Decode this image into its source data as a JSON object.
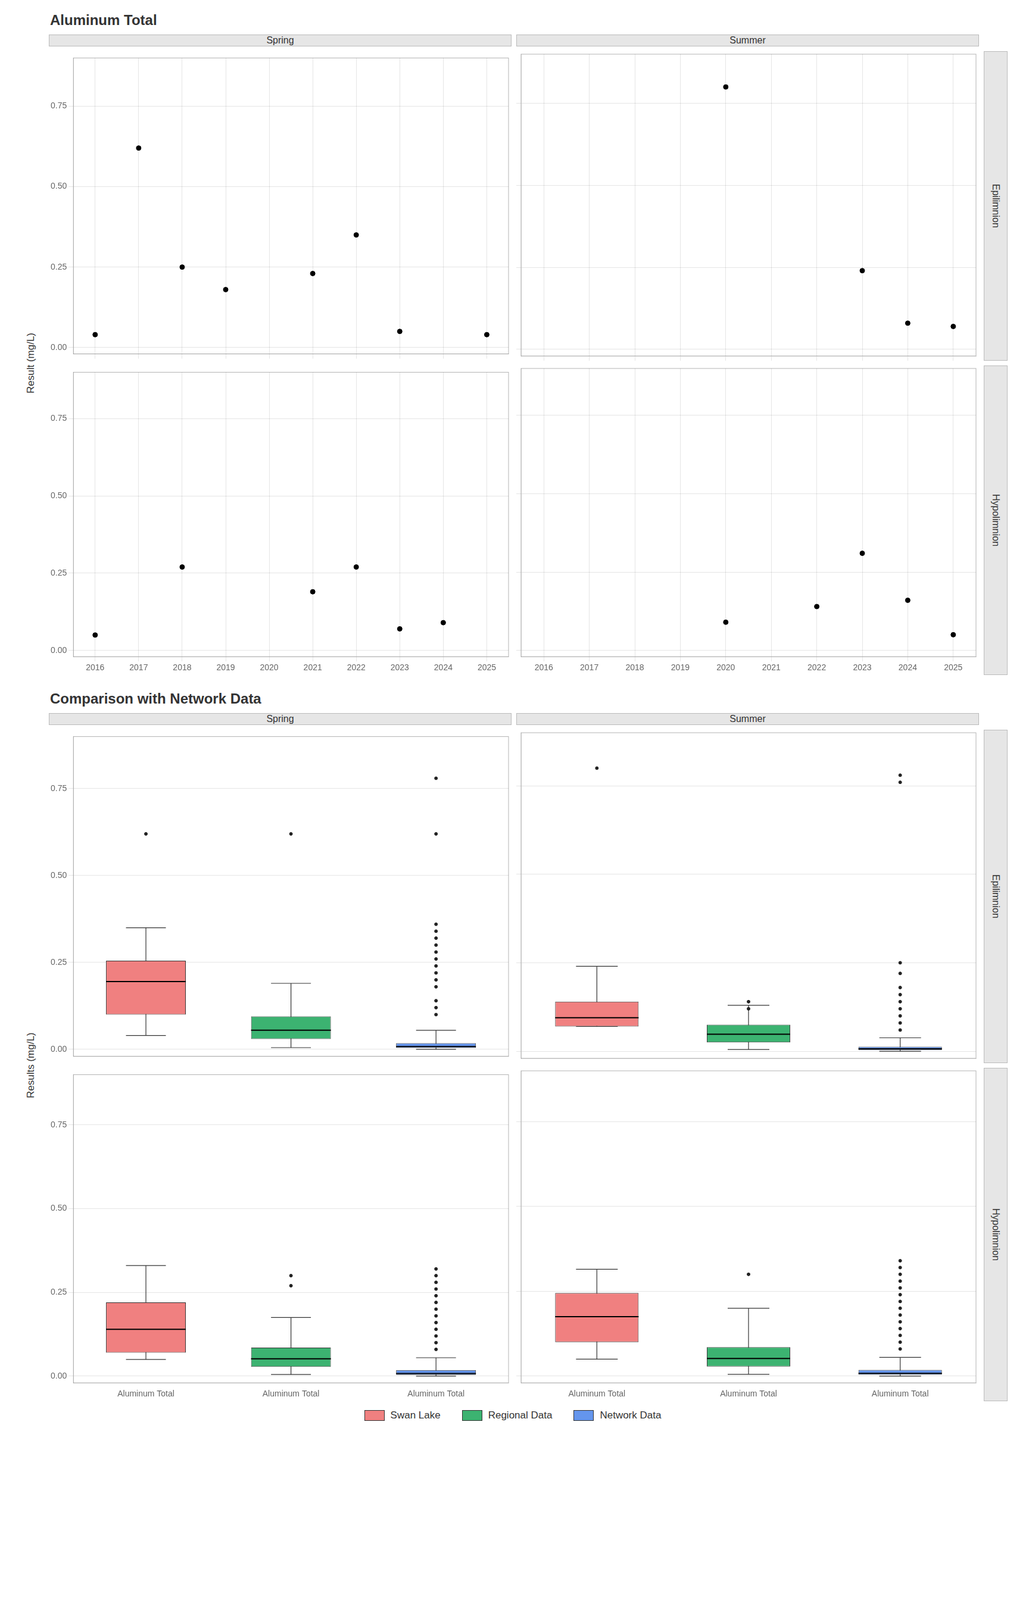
{
  "chart_data": [
    {
      "type": "scatter",
      "title": "Aluminum Total",
      "y_label": "Result (mg/L)",
      "color": "#000000",
      "xlim": [
        2015.5,
        2025.5
      ],
      "xticks": [
        2016,
        2017,
        2018,
        2019,
        2020,
        2021,
        2022,
        2023,
        2024,
        2025
      ],
      "ylim": [
        -0.02,
        0.9
      ],
      "yticks": [
        {
          "value": 0,
          "label": "0.00"
        },
        0.25,
        {
          "value": 0.5,
          "label": "0.50"
        },
        0.75
      ],
      "grid": true,
      "columns": [
        "Spring",
        "Summer"
      ],
      "rows": [
        "Epilimnion",
        "Hypolimnion"
      ],
      "panels": [
        [
          {
            "x": [
              2016,
              2017,
              2018,
              2019,
              2020,
              2021,
              2022,
              2023,
              2024,
              2025
            ],
            "values": [
              0.04,
              0.62,
              0.25,
              0.18,
              null,
              0.23,
              0.35,
              0.05,
              null,
              0.04
            ],
            "tick_labels": "y"
          },
          {
            "x": [
              2016,
              2017,
              2018,
              2019,
              2020,
              2021,
              2022,
              2023,
              2024,
              2025
            ],
            "values": [
              null,
              null,
              null,
              null,
              0.8,
              null,
              null,
              0.24,
              0.08,
              0.07
            ],
            "tick_labels": false
          }
        ],
        [
          {
            "x": [
              2016,
              2017,
              2018,
              2019,
              2020,
              2021,
              2022,
              2023,
              2024,
              2025
            ],
            "values": [
              0.05,
              null,
              0.27,
              null,
              null,
              0.19,
              0.27,
              0.07,
              0.09,
              null
            ]
          },
          {
            "x": [
              2016,
              2017,
              2018,
              2019,
              2020,
              2021,
              2022,
              2023,
              2024,
              2025
            ],
            "values": [
              null,
              null,
              null,
              null,
              0.09,
              null,
              0.14,
              0.31,
              0.16,
              0.05
            ],
            "tick_labels": "x"
          }
        ]
      ]
    },
    {
      "type": "box",
      "title": "Comparison with Network Data",
      "y_label": "Results (mg/L)",
      "categories": [
        "Aluminum Total",
        "Aluminum Total",
        "Aluminum Total"
      ],
      "ylim": [
        -0.02,
        0.9
      ],
      "yticks": [
        {
          "value": 0,
          "label": "0.00"
        },
        0.25,
        {
          "value": 0.5,
          "label": "0.50"
        },
        0.75
      ],
      "grid": "y",
      "legend": "bottom",
      "columns": [
        "Spring",
        "Summer"
      ],
      "rows": [
        "Epilimnion",
        "Hypolimnion"
      ],
      "series": [
        {
          "name": "Swan Lake",
          "color": "#F08080"
        },
        {
          "name": "Regional Data",
          "color": "#3CB371"
        },
        {
          "name": "Network Data",
          "color": "#6495ED"
        }
      ],
      "panels": [
        [
          {
            "boxes": [
              {
                "q1": 0.1,
                "median": 0.195,
                "q3": 0.255,
                "whislo": 0.04,
                "whishi": 0.35,
                "fliers": [
                  0.62
                ]
              },
              {
                "q1": 0.03,
                "median": 0.055,
                "q3": 0.095,
                "whislo": 0.005,
                "whishi": 0.19,
                "fliers": [
                  0.62
                ]
              },
              {
                "q1": 0.004,
                "median": 0.008,
                "q3": 0.018,
                "whislo": 0.0,
                "whishi": 0.055,
                "fliers": [
                  0.1,
                  0.12,
                  0.14,
                  0.18,
                  0.2,
                  0.22,
                  0.24,
                  0.26,
                  0.28,
                  0.3,
                  0.32,
                  0.34,
                  0.36,
                  0.62,
                  0.78
                ]
              }
            ],
            "tick_labels": "y"
          },
          {
            "boxes": [
              {
                "q1": 0.07,
                "median": 0.095,
                "q3": 0.14,
                "whislo": 0.07,
                "whishi": 0.24,
                "fliers": [
                  0.8
                ]
              },
              {
                "q1": 0.025,
                "median": 0.048,
                "q3": 0.075,
                "whislo": 0.005,
                "whishi": 0.13,
                "fliers": [
                  0.12,
                  0.14
                ]
              },
              {
                "q1": 0.003,
                "median": 0.007,
                "q3": 0.013,
                "whislo": 0.0,
                "whishi": 0.038,
                "fliers": [
                  0.06,
                  0.08,
                  0.1,
                  0.12,
                  0.14,
                  0.16,
                  0.18,
                  0.22,
                  0.25,
                  0.76,
                  0.78
                ]
              }
            ],
            "tick_labels": false
          }
        ],
        [
          {
            "boxes": [
              {
                "q1": 0.07,
                "median": 0.14,
                "q3": 0.22,
                "whislo": 0.05,
                "whishi": 0.33,
                "fliers": []
              },
              {
                "q1": 0.028,
                "median": 0.052,
                "q3": 0.085,
                "whislo": 0.005,
                "whishi": 0.175,
                "fliers": [
                  0.27,
                  0.3
                ]
              },
              {
                "q1": 0.004,
                "median": 0.008,
                "q3": 0.018,
                "whislo": 0.0,
                "whishi": 0.055,
                "fliers": [
                  0.08,
                  0.1,
                  0.12,
                  0.14,
                  0.16,
                  0.18,
                  0.2,
                  0.22,
                  0.24,
                  0.26,
                  0.28,
                  0.3,
                  0.32
                ]
              }
            ]
          },
          {
            "boxes": [
              {
                "q1": 0.1,
                "median": 0.175,
                "q3": 0.245,
                "whislo": 0.05,
                "whishi": 0.315,
                "fliers": []
              },
              {
                "q1": 0.028,
                "median": 0.052,
                "q3": 0.085,
                "whislo": 0.005,
                "whishi": 0.2,
                "fliers": [
                  0.3
                ]
              },
              {
                "q1": 0.004,
                "median": 0.008,
                "q3": 0.018,
                "whislo": 0.0,
                "whishi": 0.055,
                "fliers": [
                  0.08,
                  0.1,
                  0.12,
                  0.14,
                  0.16,
                  0.18,
                  0.2,
                  0.22,
                  0.24,
                  0.26,
                  0.28,
                  0.3,
                  0.32,
                  0.34
                ]
              }
            ],
            "tick_labels": "x"
          }
        ]
      ]
    }
  ]
}
